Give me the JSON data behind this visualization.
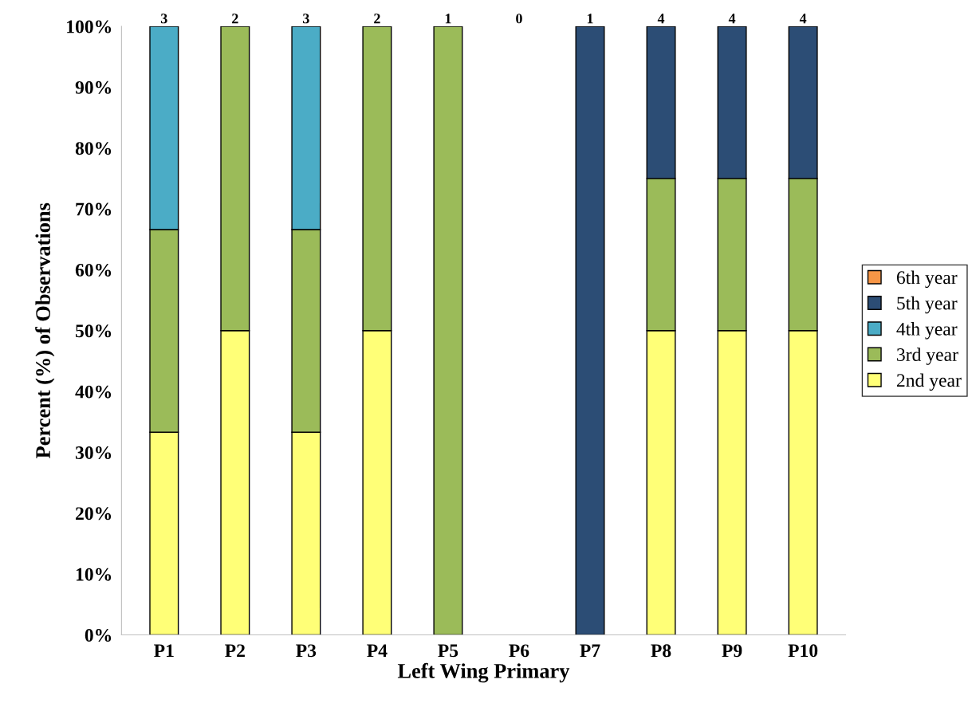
{
  "chart_data": {
    "type": "bar",
    "stacked": true,
    "xlabel": "Left Wing Primary",
    "ylabel": "Percent (%) of Observations",
    "categories": [
      "P1",
      "P2",
      "P3",
      "P4",
      "P5",
      "P6",
      "P7",
      "P8",
      "P9",
      "P10"
    ],
    "series": [
      {
        "name": "2nd year",
        "color": "#ffff77",
        "values": [
          33.3,
          50,
          33.3,
          50,
          null,
          null,
          null,
          50,
          50,
          50
        ]
      },
      {
        "name": "3rd year",
        "color": "#9bbb59",
        "values": [
          33.3,
          50,
          33.3,
          50,
          100,
          null,
          null,
          25,
          25,
          25
        ]
      },
      {
        "name": "4th year",
        "color": "#4bacc6",
        "values": [
          33.4,
          null,
          33.4,
          null,
          null,
          null,
          null,
          null,
          null,
          null
        ]
      },
      {
        "name": "5th year",
        "color": "#2c4d75",
        "values": [
          null,
          null,
          null,
          null,
          null,
          null,
          100,
          25,
          25,
          25
        ]
      },
      {
        "name": "6th year",
        "color": "#f79646",
        "values": [
          null,
          null,
          null,
          null,
          null,
          null,
          null,
          null,
          null,
          null
        ]
      }
    ],
    "annotations": [
      {
        "text": "3",
        "x": "P1",
        "y": 100
      },
      {
        "text": "2",
        "x": "P2",
        "y": 100
      },
      {
        "text": "3",
        "x": "P3",
        "y": 100
      },
      {
        "text": "2",
        "x": "P4",
        "y": 100
      },
      {
        "text": "1",
        "x": "P5",
        "y": 100
      },
      "0",
      {
        "text": "1",
        "x": "P7",
        "y": 100
      },
      {
        "text": "4",
        "x": "P8",
        "y": 100
      },
      {
        "text": "4",
        "x": "P9",
        "y": 100
      },
      {
        "text": "4",
        "x": "P10",
        "y": 100
      }
    ],
    "ylim": [
      0,
      100
    ],
    "yticks": [
      {
        "value": 0,
        "label": "0%"
      },
      {
        "value": 10,
        "label": "10%"
      },
      {
        "value": 20,
        "label": "20%"
      },
      {
        "value": 30,
        "label": "30%"
      },
      {
        "value": 40,
        "label": "40%"
      },
      {
        "value": 50,
        "label": "50%"
      },
      {
        "value": 60,
        "label": "60%"
      },
      {
        "value": 70,
        "label": "70%"
      },
      {
        "value": 80,
        "label": "80%"
      },
      {
        "value": 90,
        "label": "90%"
      },
      {
        "value": 100,
        "label": "100%"
      }
    ],
    "grid": false,
    "legend": "right"
  }
}
